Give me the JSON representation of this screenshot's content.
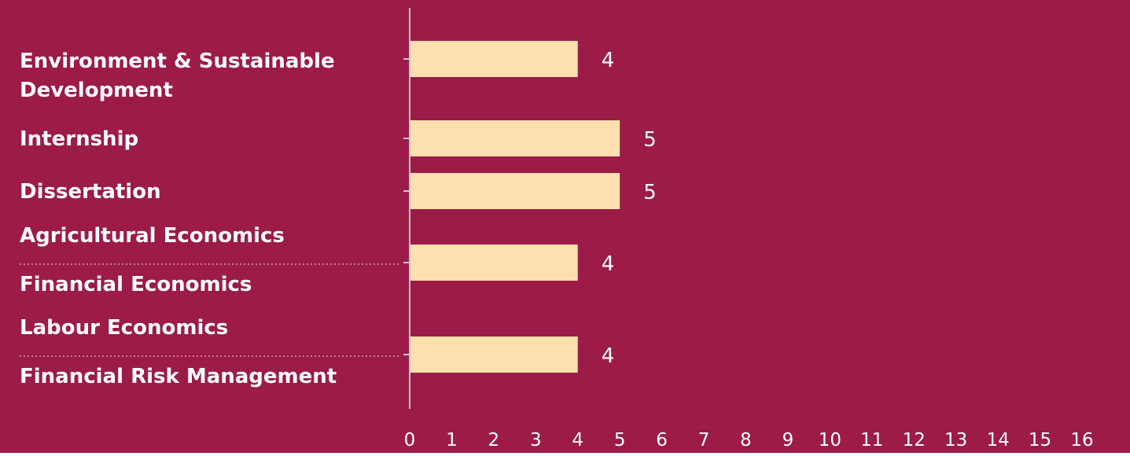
{
  "chart_data": {
    "type": "bar",
    "orientation": "horizontal",
    "title": "",
    "xlabel": "",
    "ylabel": "",
    "xlim": [
      0,
      16
    ],
    "x_ticks": [
      "0",
      "1",
      "2",
      "3",
      "4",
      "5",
      "6",
      "7",
      "8",
      "9",
      "10",
      "11",
      "12",
      "13",
      "14",
      "15",
      "16"
    ],
    "grid": false,
    "legend": "none",
    "bars": [
      {
        "labels": [
          "Environment & Sustainable",
          "Development"
        ],
        "value": 4,
        "value_label": "4"
      },
      {
        "labels": [
          "Internship"
        ],
        "value": 5,
        "value_label": "5"
      },
      {
        "labels": [
          "Dissertation"
        ],
        "value": 5,
        "value_label": "5"
      },
      {
        "labels": [
          "Agricultural Economics",
          "Financial Economics"
        ],
        "value": 4,
        "value_label": "4",
        "label_separator": "dotted"
      },
      {
        "labels": [
          "Labour Economics",
          "Financial Risk Management"
        ],
        "value": 4,
        "value_label": "4",
        "label_separator": "dotted"
      }
    ]
  },
  "colors": {
    "background": "#9c1b48",
    "bar": "#fde0ae",
    "text": "#ffffff",
    "axis": "#c9c9c9"
  }
}
